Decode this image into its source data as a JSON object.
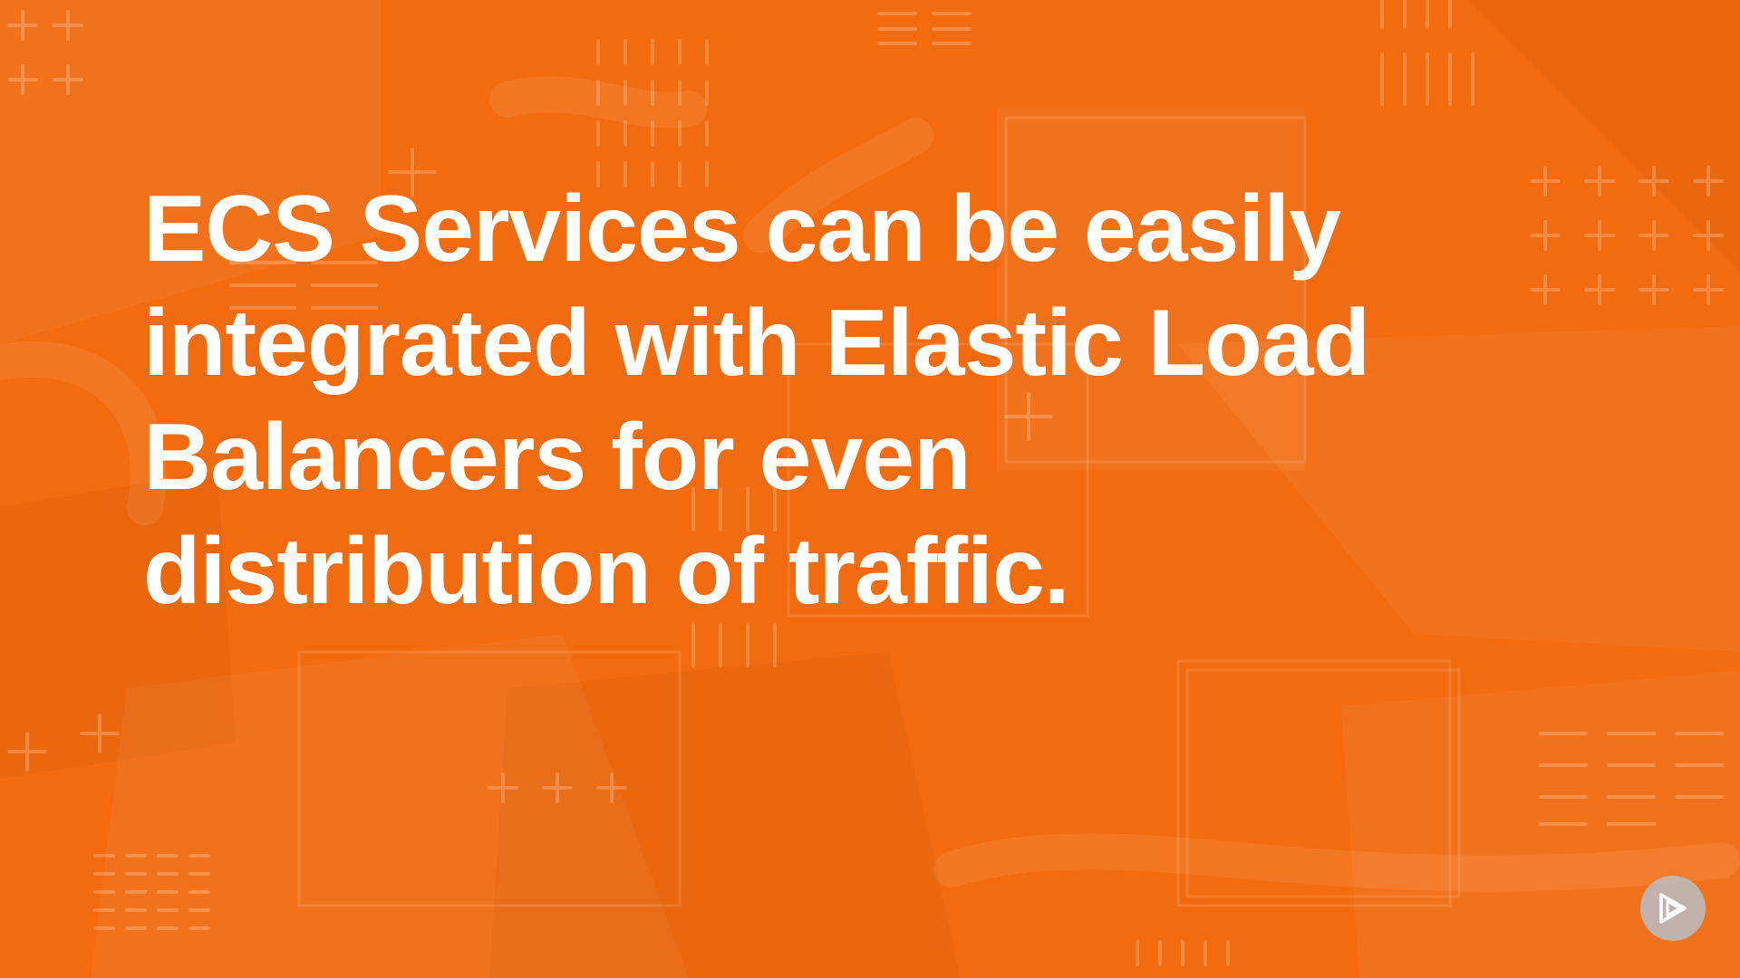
{
  "slide": {
    "headline_lines": [
      "ECS Services can be easily",
      "integrated with Elastic Load",
      "Balancers for even",
      "distribution of traffic."
    ]
  },
  "colors": {
    "background": "#f26b0f",
    "text": "#ffffff",
    "logo_badge": "#b9bec6"
  },
  "icons": {
    "logo": "play-logo-icon"
  }
}
